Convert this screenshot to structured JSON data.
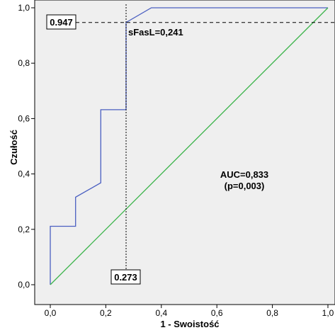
{
  "chart_data": {
    "type": "line",
    "xlabel": "1 - Swoistość",
    "ylabel": "Czułość",
    "xlim": [
      0,
      1
    ],
    "ylim": [
      0,
      1
    ],
    "x_ticks": [
      "0,0",
      "0,2",
      "0,4",
      "0,6",
      "0,8",
      "1,0"
    ],
    "y_ticks": [
      "0,0",
      "0,2",
      "0,4",
      "0,6",
      "0,8",
      "1,0"
    ],
    "grid": false,
    "series": [
      {
        "color": "#4a5fc1",
        "x": [
          0,
          0,
          0.091,
          0.091,
          0.182,
          0.182,
          0.273,
          0.273,
          0.364,
          1.0
        ],
        "y": [
          0,
          0.211,
          0.211,
          0.316,
          0.368,
          0.632,
          0.632,
          0.947,
          1.0,
          1.0
        ]
      },
      {
        "color": "#3cb44b",
        "x": [
          0,
          1
        ],
        "y": [
          0,
          1
        ]
      }
    ],
    "reference_lines": {
      "horizontal_y": 0.947,
      "vertical_x": 0.273
    },
    "annotations": {
      "y_box": "0.947",
      "x_box": "0.273",
      "cutoff": "sFasL=0,241",
      "auc": "AUC=0,833",
      "p": "(p=0,003)"
    }
  }
}
